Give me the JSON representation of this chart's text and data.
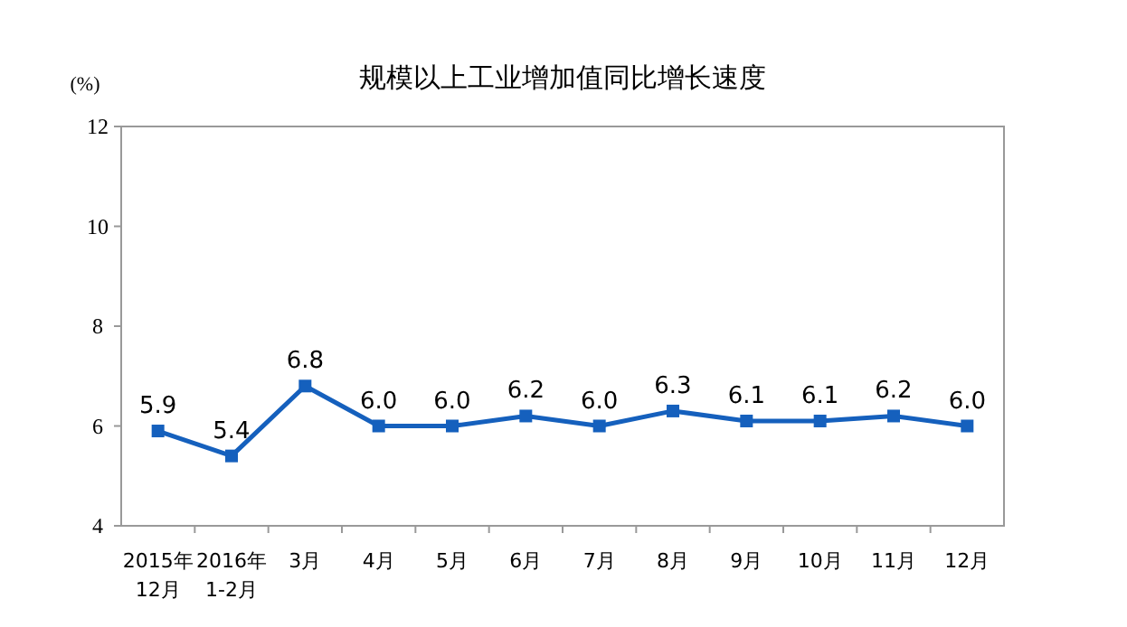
{
  "chart_data": {
    "type": "line",
    "title": "规模以上工业增加值同比增长速度",
    "ylabel": "(%)",
    "categories": [
      "2015年\n12月",
      "2016年\n1-2月",
      "3月",
      "4月",
      "5月",
      "6月",
      "7月",
      "8月",
      "9月",
      "10月",
      "11月",
      "12月"
    ],
    "series": [
      {
        "color": "#1560bd",
        "values": [
          5.9,
          5.4,
          6.8,
          6.0,
          6.0,
          6.2,
          6.0,
          6.3,
          6.1,
          6.1,
          6.2,
          6.0
        ]
      }
    ],
    "value_labels": [
      "5.9",
      "5.4",
      "6.8",
      "6.0",
      "6.0",
      "6.2",
      "6.0",
      "6.3",
      "6.1",
      "6.1",
      "6.2",
      "6.0"
    ],
    "ylim": [
      4,
      12
    ],
    "yticks": [
      4,
      6,
      8,
      10,
      12
    ],
    "grid": false,
    "marker": "square",
    "line_style": "solid"
  }
}
